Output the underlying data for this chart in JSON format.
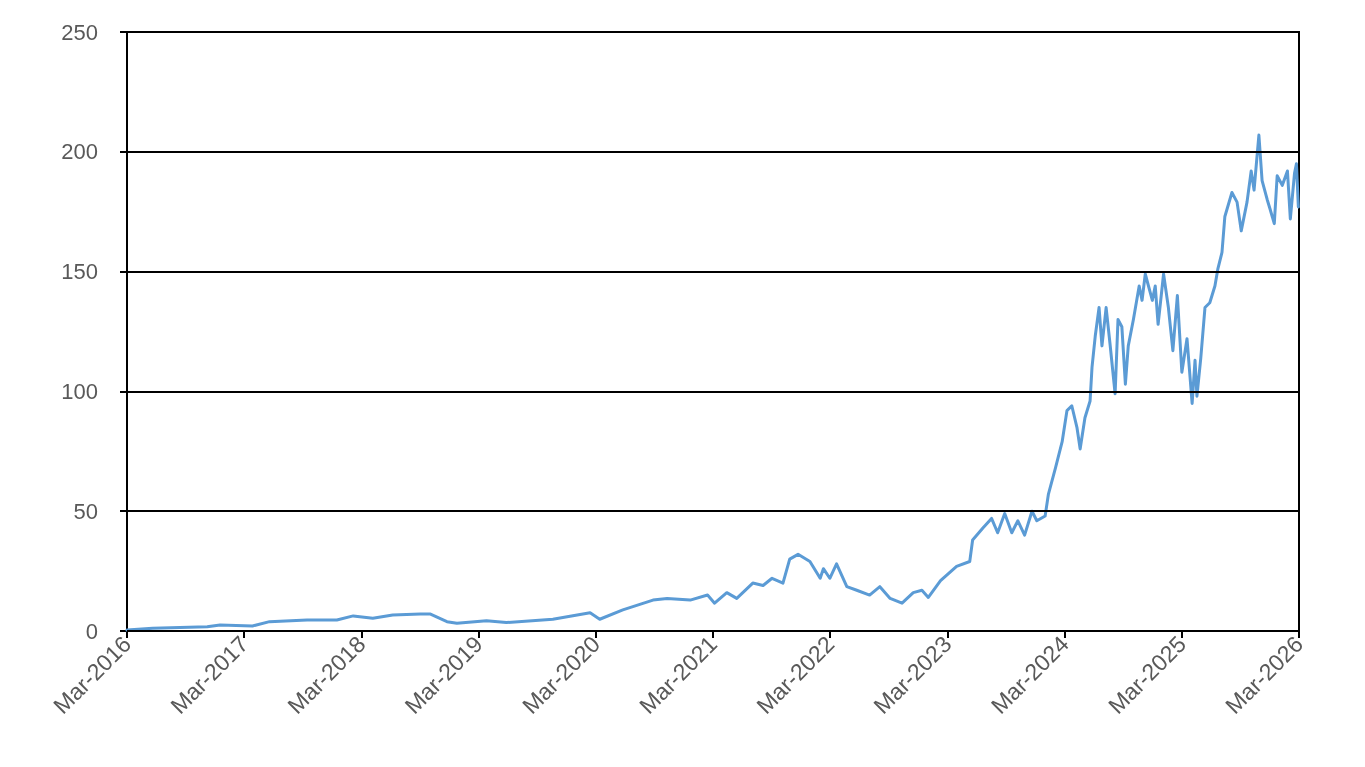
{
  "chart_data": {
    "type": "line",
    "color": "#5b9bd5",
    "grid": "y",
    "xlim": [
      "2016-03-01",
      "2026-03-01"
    ],
    "xticks": [
      {
        "value": "2016-03-01",
        "label": "Mar-2016"
      },
      {
        "value": "2017-03-01",
        "label": "Mar-2017"
      },
      {
        "value": "2018-03-01",
        "label": "Mar-2018"
      },
      {
        "value": "2019-03-01",
        "label": "Mar-2019"
      },
      {
        "value": "2020-03-01",
        "label": "Mar-2020"
      },
      {
        "value": "2021-03-01",
        "label": "Mar-2021"
      },
      {
        "value": "2022-03-01",
        "label": "Mar-2022"
      },
      {
        "value": "2023-03-01",
        "label": "Mar-2023"
      },
      {
        "value": "2024-03-01",
        "label": "Mar-2024"
      },
      {
        "value": "2025-03-01",
        "label": "Mar-2025"
      },
      {
        "value": "2026-03-01",
        "label": "Mar-2026"
      }
    ],
    "ylim": [
      0,
      250
    ],
    "yticks": [
      0,
      50,
      100,
      150,
      200,
      250
    ],
    "x": [
      "2016-03-01",
      "2016-05-20",
      "2016-11-06",
      "2016-12-16",
      "2017-03-27",
      "2017-05-19",
      "2017-09-13",
      "2017-12-15",
      "2018-02-04",
      "2018-04-06",
      "2018-06-07",
      "2018-09-01",
      "2018-10-01",
      "2018-11-23",
      "2018-12-24",
      "2019-03-26",
      "2019-05-27",
      "2019-10-19",
      "2020-02-12",
      "2020-03-13",
      "2020-05-24",
      "2020-08-26",
      "2020-10-09",
      "2020-12-20",
      "2021-02-12",
      "2021-03-06",
      "2021-04-13",
      "2021-05-14",
      "2021-07-03",
      "2021-08-04",
      "2021-09-01",
      "2021-10-05",
      "2021-10-26",
      "2021-11-21",
      "2021-12-28",
      "2022-01-29",
      "2022-02-08",
      "2022-02-28",
      "2022-03-21",
      "2022-04-22",
      "2022-05-23",
      "2022-07-02",
      "2022-08-03",
      "2022-09-04",
      "2022-10-11",
      "2022-11-15",
      "2022-12-12",
      "2023-01-01",
      "2023-02-08",
      "2023-03-30",
      "2023-05-10",
      "2023-05-19",
      "2023-06-20",
      "2023-07-17",
      "2023-08-05",
      "2023-08-27",
      "2023-09-18",
      "2023-10-07",
      "2023-10-28",
      "2023-11-20",
      "2023-12-05",
      "2023-12-31",
      "2024-01-10",
      "2024-02-01",
      "2024-02-22",
      "2024-03-08",
      "2024-03-23",
      "2024-04-08",
      "2024-04-18",
      "2024-05-03",
      "2024-05-19",
      "2024-05-25",
      "2024-06-04",
      "2024-06-16",
      "2024-06-25",
      "2024-07-08",
      "2024-07-20",
      "2024-08-05",
      "2024-08-14",
      "2024-08-26",
      "2024-09-06",
      "2024-09-15",
      "2024-10-01",
      "2024-10-19",
      "2024-10-28",
      "2024-11-07",
      "2024-11-29",
      "2024-12-08",
      "2024-12-17",
      "2025-01-03",
      "2025-01-18",
      "2025-02-01",
      "2025-02-15",
      "2025-03-01",
      "2025-03-17",
      "2025-04-02",
      "2025-04-11",
      "2025-04-17",
      "2025-04-29",
      "2025-05-12",
      "2025-05-27",
      "2025-06-12",
      "2025-06-21",
      "2025-07-04",
      "2025-07-13",
      "2025-08-04",
      "2025-08-20",
      "2025-09-02",
      "2025-09-20",
      "2025-10-03",
      "2025-10-12",
      "2025-10-27",
      "2025-11-06",
      "2025-11-22",
      "2025-12-01",
      "2025-12-14",
      "2025-12-23",
      "2026-01-08",
      "2026-01-24",
      "2026-02-02",
      "2026-02-15",
      "2026-02-21",
      "2026-02-27"
    ],
    "values": [
      0.4,
      1.1,
      1.8,
      2.5,
      2.1,
      3.9,
      4.6,
      4.6,
      6.3,
      5.3,
      6.7,
      7.1,
      7.1,
      3.9,
      3.2,
      4.3,
      3.5,
      4.9,
      7.6,
      4.9,
      8.8,
      12.9,
      13.6,
      12.9,
      15,
      11.6,
      16,
      13.6,
      20,
      19,
      22,
      20,
      30,
      32,
      29,
      22,
      26,
      22,
      28,
      18.5,
      17,
      15,
      18.5,
      13.6,
      11.6,
      16,
      17,
      14,
      21,
      27,
      29,
      38,
      43,
      47,
      41,
      49,
      41,
      46,
      40,
      50,
      46,
      48,
      57,
      68,
      79,
      92,
      94,
      85,
      76,
      89,
      96,
      110,
      123,
      135,
      119,
      135,
      120,
      99,
      130,
      127,
      103,
      119,
      130,
      144,
      138,
      149,
      138,
      144,
      128,
      149,
      135,
      117,
      140,
      108,
      122,
      95,
      113,
      98,
      114,
      135,
      137,
      144,
      151,
      158,
      173,
      183,
      179,
      167,
      179,
      192,
      184,
      207,
      188,
      180,
      176,
      170,
      190,
      186,
      192,
      172,
      191,
      195,
      177
    ]
  }
}
